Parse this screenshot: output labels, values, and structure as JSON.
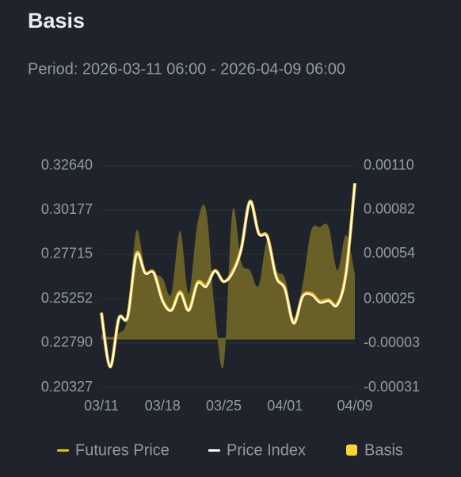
{
  "chart_data": {
    "type": "line",
    "title": "Basis",
    "subtitle": "Period: 2026-03-11 06:00 - 2026-04-09 06:00",
    "categories": [
      "03/11",
      null,
      null,
      null,
      null,
      null,
      null,
      "03/18",
      null,
      null,
      null,
      null,
      null,
      null,
      "03/25",
      null,
      null,
      null,
      null,
      null,
      null,
      "04/01",
      null,
      null,
      null,
      null,
      null,
      null,
      null,
      "04/09"
    ],
    "ylim": [
      0.20327,
      0.3264
    ],
    "yticks": [
      {
        "value": 0.3264,
        "label": "0.32640"
      },
      0.30177,
      0.27715,
      0.25252,
      {
        "value": 0.2279,
        "label": "0.22790"
      },
      0.20327
    ],
    "y2lim": [
      -0.00031,
      0.0011
    ],
    "y2ticks": [
      {
        "value": 0.0011,
        "label": "0.00110"
      },
      0.00082,
      0.00054,
      0.00025,
      -3e-05,
      -0.00031
    ],
    "grid": true,
    "series": [
      {
        "name": "Futures Price",
        "color": "#f0b90b",
        "values": [
          0.2448,
          0.2148,
          0.2416,
          0.2425,
          0.2774,
          0.267,
          0.267,
          0.2516,
          0.2462,
          0.2563,
          0.2462,
          0.2616,
          0.2599,
          0.2681,
          0.262,
          0.2674,
          0.2803,
          0.3066,
          0.2889,
          0.287,
          0.2648,
          0.2582,
          0.239,
          0.2537,
          0.2554,
          0.251,
          0.2519,
          0.2494,
          0.2673,
          0.3167
        ]
      },
      {
        "name": "Price Index",
        "color": "#ffffff",
        "values": [
          0.2446,
          0.2147,
          0.2415,
          0.2424,
          0.2767,
          0.2666,
          0.2666,
          0.2512,
          0.2459,
          0.2556,
          0.2459,
          0.2609,
          0.2591,
          0.2679,
          0.2622,
          0.2666,
          0.2798,
          0.3062,
          0.2886,
          0.2864,
          0.2644,
          0.2578,
          0.2389,
          0.2534,
          0.2547,
          0.2503,
          0.2512,
          0.249,
          0.2666,
          0.3163
        ]
      },
      {
        "name": "Basis",
        "color": "#fcd535",
        "axis": "y2",
        "values": [
          2.5e-05,
          1e-05,
          3.5e-05,
          0.000135,
          0.000685,
          0.000435,
          0.00041,
          0.000385,
          0.000285,
          0.000685,
          0.000285,
          0.000735,
          0.00081,
          0.00016,
          -0.000165,
          0.00081,
          0.000485,
          0.000435,
          0.000335,
          0.000635,
          0.000435,
          0.000385,
          0.000135,
          0.000335,
          0.000685,
          0.00071,
          0.00071,
          0.000435,
          0.00066,
          0.00041
        ]
      }
    ]
  }
}
